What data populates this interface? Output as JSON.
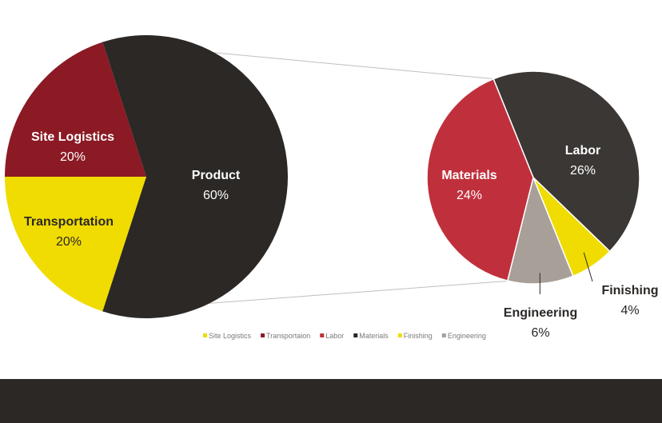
{
  "chart_data": {
    "type": "pie-of-pie",
    "main_pie": {
      "slices": [
        {
          "name": "Site Logistics",
          "value": 20,
          "label": "Site Logistics",
          "pct": "20%",
          "color": "#8b1a24",
          "text_color": "#ffffff"
        },
        {
          "name": "Transportation",
          "value": 20,
          "label": "Transportation",
          "pct": "20%",
          "color": "#f0dc00",
          "text_color": "#2b2826"
        },
        {
          "name": "Product",
          "value": 60,
          "label": "Product",
          "pct": "60%",
          "color": "#2b2826",
          "text_color": "#ffffff"
        }
      ]
    },
    "secondary_pie": {
      "slices": [
        {
          "name": "Labor",
          "value": 26,
          "label": "Labor",
          "pct": "26%",
          "color": "#3b3735",
          "text_color": "#ffffff"
        },
        {
          "name": "Finishing",
          "value": 4,
          "label": "Finishing",
          "pct": "4%",
          "color": "#f0dc00",
          "text_color": "#2b2826"
        },
        {
          "name": "Engineering",
          "value": 6,
          "label": "Engineering",
          "pct": "6%",
          "color": "#a89f98",
          "text_color": "#2b2826"
        },
        {
          "name": "Materials",
          "value": 24,
          "label": "Materials",
          "pct": "24%",
          "color": "#c0303c",
          "text_color": "#ffffff"
        }
      ]
    },
    "legend": [
      {
        "label": "Site Logistics",
        "color": "#f0dc00"
      },
      {
        "label": "Transportaion",
        "color": "#8b1a24"
      },
      {
        "label": "Labor",
        "color": "#c0303c"
      },
      {
        "label": "Materials",
        "color": "#2b2826"
      },
      {
        "label": "Finishing",
        "color": "#f0dc00"
      },
      {
        "label": "Engineering",
        "color": "#a89f98"
      }
    ],
    "legend_placement": "bottom"
  }
}
